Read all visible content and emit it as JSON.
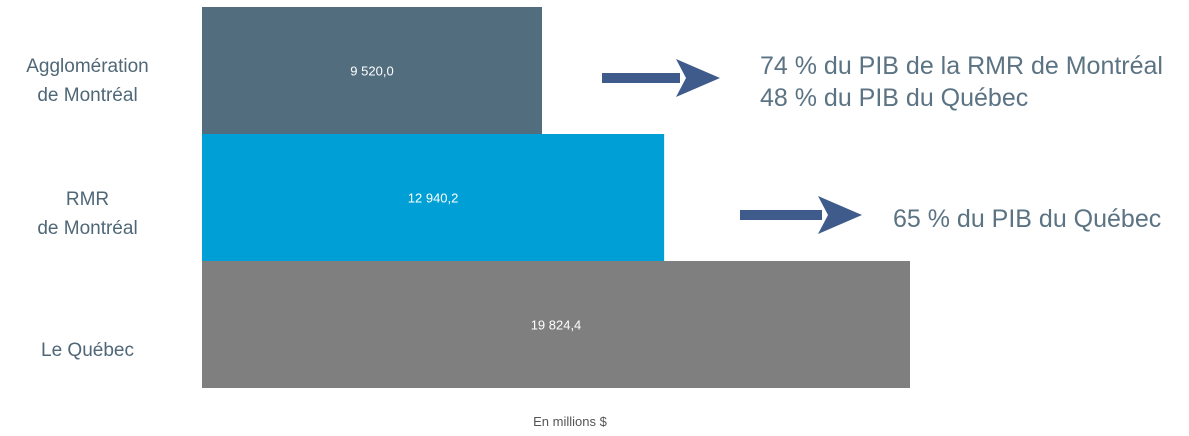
{
  "chart_data": {
    "type": "bar",
    "orientation": "horizontal",
    "categories": [
      "Agglomération de Montréal",
      "RMR de Montréal",
      "Le Québec"
    ],
    "category_label_lines": [
      [
        "Agglomération",
        "de Montréal"
      ],
      [
        "RMR",
        "de Montréal"
      ],
      [
        "Le Québec"
      ]
    ],
    "values": [
      9520.0,
      12940.2,
      19824.4
    ],
    "value_labels": [
      "9 520,0",
      "12 940,2",
      "19 824,4"
    ],
    "colors": [
      "#526d7e",
      "#00a0d6",
      "#7f7f7f"
    ],
    "xlabel": "En millions $",
    "ylabel": "",
    "title": "",
    "grid": false,
    "legend": "none",
    "annotations": [
      {
        "lines": [
          "74 % du PIB de la RMR de Montréal",
          "48 % du PIB du Québec"
        ],
        "arrow_color": "#3e5b8c"
      },
      {
        "lines": [
          "65 % du PIB du Québec"
        ],
        "arrow_color": "#3e5b8c"
      }
    ]
  }
}
